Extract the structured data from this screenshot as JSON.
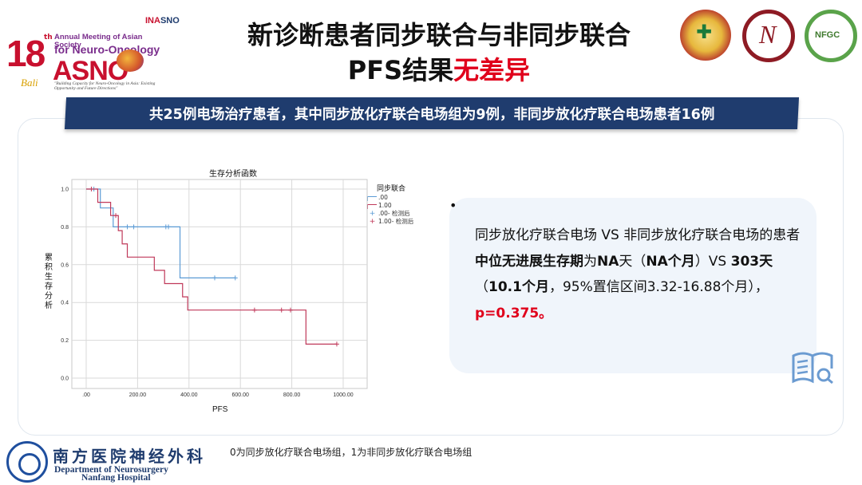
{
  "header": {
    "title_line1": "新诊断患者同步联合与非同步联合",
    "title_line2_prefix": "PFS结果",
    "title_line2_highlight": "无差异"
  },
  "logos": {
    "asno_number": "18",
    "asno_th": "th",
    "asno_annual": "Annual Meeting of Asian Society",
    "asno_for": "for Neuro-Oncology",
    "asno_name": "ASNO",
    "asno_tagline": "\"Building Capacity for Neuro-Oncology in Asia: Existing Opportunity and Future Directions\"",
    "asno_signature": "Bali",
    "inasno_prefix": "INA",
    "inasno_suffix": "SNO",
    "nfgc": "NFGC"
  },
  "banner": "共25例电场治疗患者，其中同步放化疗联合电场组为9例，非同步放化疗联合电场患者16例",
  "chart_data": {
    "type": "line",
    "subtype": "kaplan-meier step",
    "title": "生存分析函数",
    "xlabel": "PFS",
    "ylabel": "累积生存分析",
    "xlim": [
      0,
      1000
    ],
    "ylim": [
      0,
      1.0
    ],
    "x_ticks": [
      ".00",
      "200.00",
      "400.00",
      "600.00",
      "800.00",
      "1000.00"
    ],
    "x_tick_values": [
      0,
      200,
      400,
      600,
      800,
      1000
    ],
    "y_ticks": [
      "0.0",
      "0.2",
      "0.4",
      "0.6",
      "0.8",
      "1.0"
    ],
    "y_tick_values": [
      0,
      0.2,
      0.4,
      0.6,
      0.8,
      1.0
    ],
    "grid": true,
    "legend_title": "同步联合",
    "legend_position": "right",
    "legend": [
      ".00",
      "1.00",
      ".00- 检测后",
      "1.00- 检测后"
    ],
    "series": [
      {
        "name": ".00",
        "color": "#5b9bd5",
        "steps": [
          [
            0,
            1.0
          ],
          [
            55,
            0.9
          ],
          [
            105,
            0.8
          ],
          [
            365,
            0.53
          ],
          [
            580,
            0.53
          ]
        ],
        "censored": [
          [
            30,
            1.0
          ],
          [
            160,
            0.8
          ],
          [
            185,
            0.8
          ],
          [
            310,
            0.8
          ],
          [
            320,
            0.8
          ],
          [
            500,
            0.53
          ],
          [
            580,
            0.53
          ]
        ]
      },
      {
        "name": "1.00",
        "color": "#c0395a",
        "steps": [
          [
            0,
            1.0
          ],
          [
            45,
            0.93
          ],
          [
            95,
            0.86
          ],
          [
            125,
            0.78
          ],
          [
            140,
            0.71
          ],
          [
            160,
            0.64
          ],
          [
            265,
            0.57
          ],
          [
            305,
            0.5
          ],
          [
            375,
            0.43
          ],
          [
            395,
            0.36
          ],
          [
            855,
            0.18
          ],
          [
            975,
            0.18
          ]
        ],
        "censored": [
          [
            20,
            1.0
          ],
          [
            115,
            0.86
          ],
          [
            655,
            0.36
          ],
          [
            760,
            0.36
          ],
          [
            795,
            0.36
          ],
          [
            975,
            0.18
          ]
        ]
      }
    ]
  },
  "bullet": {
    "marker": "•",
    "p1": "同步放化疗联合电场 VS 非同步放化疗联合电场的患者",
    "b1": "中位无进展生存期",
    "p2": "为",
    "b2": "NA",
    "p3": "天（",
    "b3": "NA个月",
    "p4": "）VS ",
    "b4": "303天",
    "p5": "（",
    "b5": "10.1个月",
    "p6": "，95%置信区间3.32-16.88个月），",
    "red": "p=0.375。"
  },
  "footer": {
    "hospital_cn": "南方医院神经外科",
    "hospital_en1": "Department of Neurosurgery",
    "hospital_en2": "Nanfang Hospital",
    "note": "0为同步放化疗联合电场组，1为非同步放化疗联合电场组"
  },
  "icons": {
    "book": "book-search-icon"
  }
}
